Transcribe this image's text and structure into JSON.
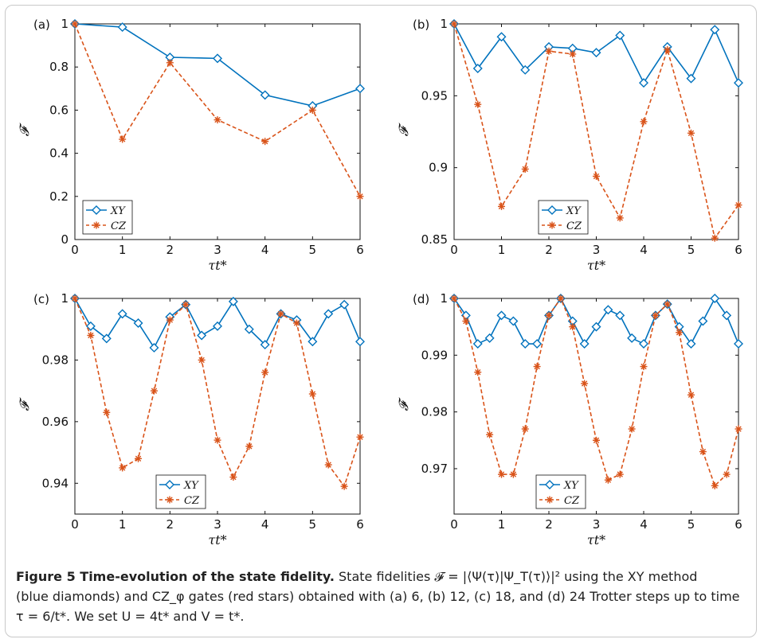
{
  "caption": {
    "title": "Figure 5  Time-evolution of the state fidelity.",
    "line1": "State fidelities 𝓕 = |⟨Ψ(τ)|Ψ_T(τ)⟩|² using the XY method",
    "line2": "(blue diamonds) and CZ_φ gates (red stars) obtained with (a) 6, (b) 12, (c) 18, and (d) 24 Trotter steps up to time",
    "line3": "τ = 6/t*. We set U = 4t* and V = t*."
  },
  "colors": {
    "xy": "#0072BD",
    "cz": "#D95319",
    "axis": "#111111"
  },
  "chart_data": [
    {
      "panel": "(a)",
      "type": "line",
      "xlabel": "τt*",
      "ylabel": "𝓕",
      "xlim": [
        0,
        6
      ],
      "ylim": [
        0,
        1
      ],
      "xticks": [
        "0",
        "1",
        "2",
        "3",
        "4",
        "5",
        "6"
      ],
      "yticks": [
        "0",
        "0.2",
        "0.4",
        "0.6",
        "0.8",
        "1"
      ],
      "legend": "bottom-left",
      "series": [
        {
          "name": "XY",
          "marker": "diamond",
          "x": [
            0,
            1,
            2,
            3,
            4,
            5,
            6
          ],
          "y": [
            1.0,
            0.985,
            0.845,
            0.84,
            0.67,
            0.62,
            0.7
          ]
        },
        {
          "name": "CZ",
          "marker": "star",
          "x": [
            0,
            1,
            2,
            3,
            4,
            5,
            6
          ],
          "y": [
            1.0,
            0.465,
            0.82,
            0.555,
            0.455,
            0.6,
            0.2
          ]
        }
      ]
    },
    {
      "panel": "(b)",
      "type": "line",
      "xlabel": "τt*",
      "ylabel": "𝓕",
      "xlim": [
        0,
        6
      ],
      "ylim": [
        0.85,
        1
      ],
      "xticks": [
        "0",
        "1",
        "2",
        "3",
        "4",
        "5",
        "6"
      ],
      "yticks": [
        "0.85",
        "0.9",
        "0.95",
        "1"
      ],
      "legend": "bottom-center",
      "series": [
        {
          "name": "XY",
          "marker": "diamond",
          "x": [
            0,
            0.5,
            1,
            1.5,
            2,
            2.5,
            3,
            3.5,
            4,
            4.5,
            5,
            5.5,
            6
          ],
          "y": [
            1.0,
            0.969,
            0.991,
            0.968,
            0.984,
            0.983,
            0.98,
            0.992,
            0.959,
            0.984,
            0.962,
            0.996,
            0.959
          ]
        },
        {
          "name": "CZ",
          "marker": "star",
          "x": [
            0,
            0.5,
            1,
            1.5,
            2,
            2.5,
            3,
            3.5,
            4,
            4.5,
            5,
            5.5,
            6
          ],
          "y": [
            1.0,
            0.944,
            0.873,
            0.899,
            0.981,
            0.979,
            0.894,
            0.865,
            0.932,
            0.982,
            0.924,
            0.851,
            0.874
          ]
        }
      ]
    },
    {
      "panel": "(c)",
      "type": "line",
      "xlabel": "τt*",
      "ylabel": "𝓕",
      "xlim": [
        0,
        6
      ],
      "ylim": [
        0.93,
        1
      ],
      "xticks": [
        "0",
        "1",
        "2",
        "3",
        "4",
        "5",
        "6"
      ],
      "yticks": [
        "0.94",
        "0.96",
        "0.98",
        "1"
      ],
      "legend": "bottom-center",
      "series": [
        {
          "name": "XY",
          "marker": "diamond",
          "x": [
            0,
            0.333,
            0.667,
            1,
            1.333,
            1.667,
            2,
            2.333,
            2.667,
            3,
            3.333,
            3.667,
            4,
            4.333,
            4.667,
            5,
            5.333,
            5.667,
            6
          ],
          "y": [
            1.0,
            0.991,
            0.987,
            0.995,
            0.992,
            0.984,
            0.994,
            0.998,
            0.988,
            0.991,
            0.999,
            0.99,
            0.985,
            0.995,
            0.993,
            0.986,
            0.995,
            0.998,
            0.986
          ]
        },
        {
          "name": "CZ",
          "marker": "star",
          "x": [
            0,
            0.333,
            0.667,
            1,
            1.333,
            1.667,
            2,
            2.333,
            2.667,
            3,
            3.333,
            3.667,
            4,
            4.333,
            4.667,
            5,
            5.333,
            5.667,
            6
          ],
          "y": [
            1.0,
            0.988,
            0.963,
            0.945,
            0.948,
            0.97,
            0.993,
            0.998,
            0.98,
            0.954,
            0.942,
            0.952,
            0.976,
            0.995,
            0.992,
            0.969,
            0.946,
            0.939,
            0.955
          ]
        }
      ]
    },
    {
      "panel": "(d)",
      "type": "line",
      "xlabel": "τt*",
      "ylabel": "𝓕",
      "xlim": [
        0,
        6
      ],
      "ylim": [
        0.962,
        1
      ],
      "xticks": [
        "0",
        "1",
        "2",
        "3",
        "4",
        "5",
        "6"
      ],
      "yticks": [
        "0.97",
        "0.98",
        "0.99",
        "1"
      ],
      "legend": "bottom-center",
      "series": [
        {
          "name": "XY",
          "marker": "diamond",
          "x": [
            0,
            0.25,
            0.5,
            0.75,
            1,
            1.25,
            1.5,
            1.75,
            2,
            2.25,
            2.5,
            2.75,
            3,
            3.25,
            3.5,
            3.75,
            4,
            4.25,
            4.5,
            4.75,
            5,
            5.25,
            5.5,
            5.75,
            6
          ],
          "y": [
            1.0,
            0.997,
            0.992,
            0.993,
            0.997,
            0.996,
            0.992,
            0.992,
            0.997,
            1.0,
            0.996,
            0.992,
            0.995,
            0.998,
            0.997,
            0.993,
            0.992,
            0.997,
            0.999,
            0.995,
            0.992,
            0.996,
            1.0,
            0.997,
            0.992
          ]
        },
        {
          "name": "CZ",
          "marker": "star",
          "x": [
            0,
            0.25,
            0.5,
            0.75,
            1,
            1.25,
            1.5,
            1.75,
            2,
            2.25,
            2.5,
            2.75,
            3,
            3.25,
            3.5,
            3.75,
            4,
            4.25,
            4.5,
            4.75,
            5,
            5.25,
            5.5,
            5.75,
            6
          ],
          "y": [
            1.0,
            0.996,
            0.987,
            0.976,
            0.969,
            0.969,
            0.977,
            0.988,
            0.997,
            1.0,
            0.995,
            0.985,
            0.975,
            0.968,
            0.969,
            0.977,
            0.988,
            0.997,
            0.999,
            0.994,
            0.983,
            0.973,
            0.967,
            0.969,
            0.977
          ]
        }
      ]
    }
  ]
}
